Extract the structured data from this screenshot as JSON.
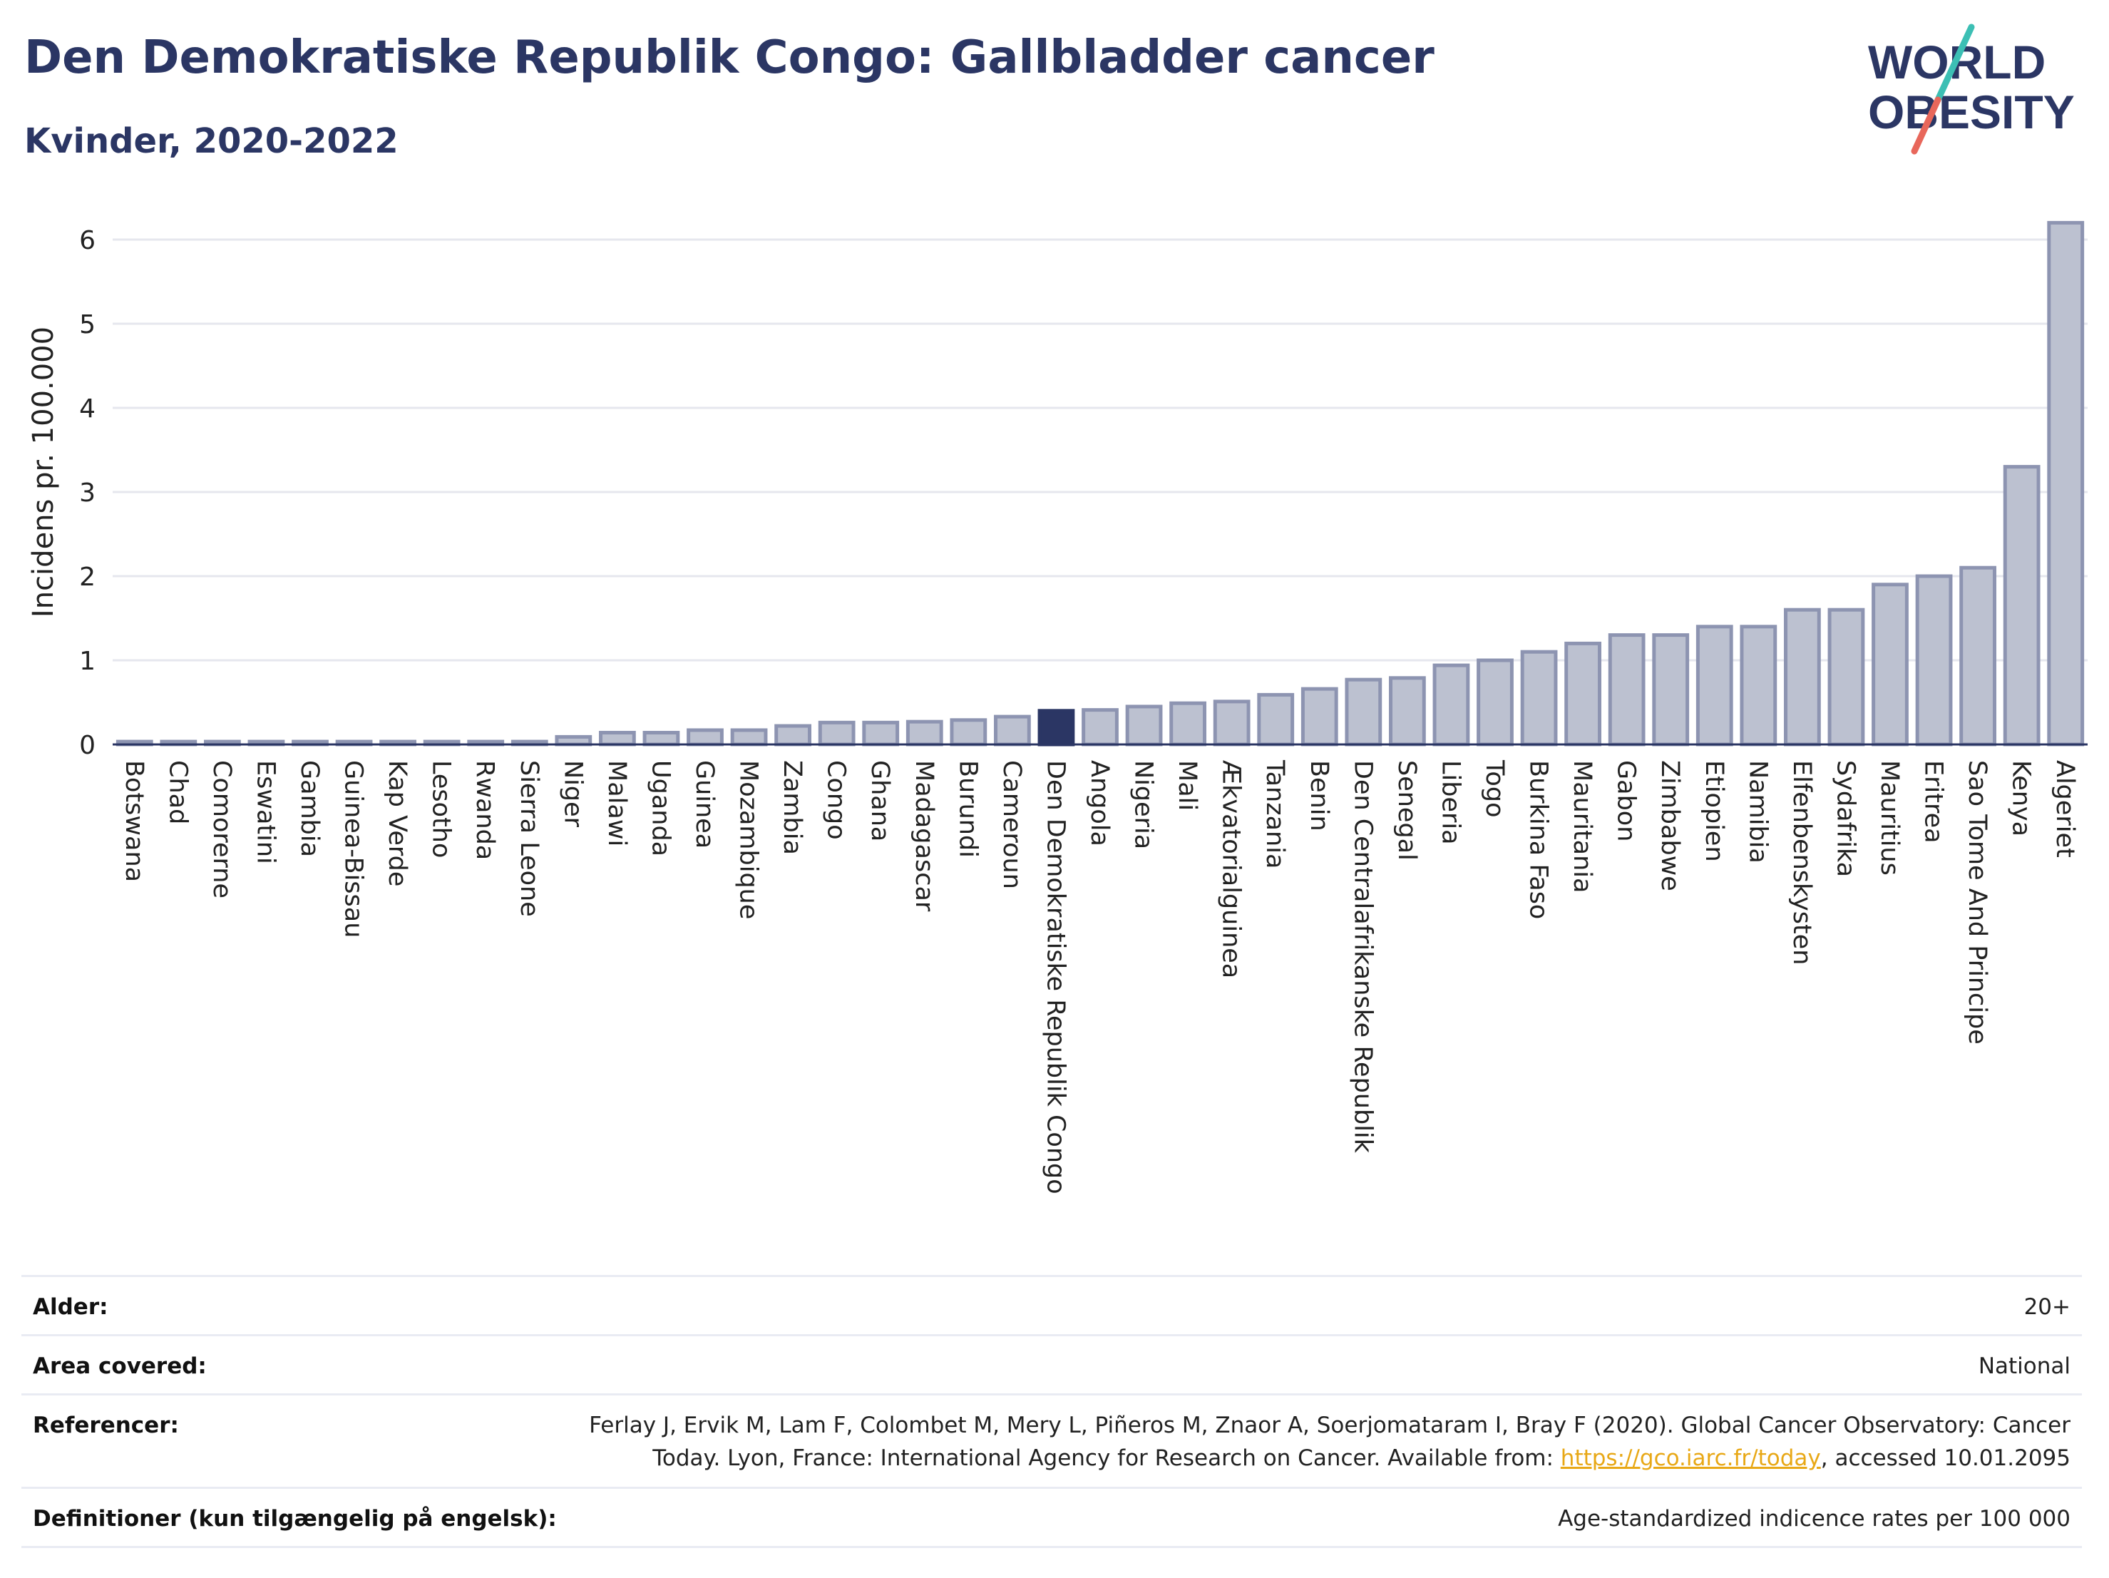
{
  "header": {
    "title": "Den Demokratiske Republik Congo: Gallbladder cancer",
    "subtitle": "Kvinder, 2020-2022"
  },
  "logo": {
    "line1": "WORLD",
    "line2": "OBESITY"
  },
  "colors": {
    "title": "#2b3664",
    "bar_fill": "#bcc1d0",
    "bar_stroke": "#8d94b1",
    "highlight": "#2b3664",
    "grid": "#e6e7ee",
    "link": "#e8a816",
    "logo_teal": "#3cbfb4",
    "logo_red": "#e8675b"
  },
  "chart_data": {
    "type": "bar",
    "ylabel": "Incidens pr. 100.000",
    "ylim": [
      0,
      6.3
    ],
    "yticks": [
      0,
      1,
      2,
      3,
      4,
      5,
      6
    ],
    "grid": true,
    "highlight_category": "Den Demokratiske Republik Congo",
    "categories": [
      "Botswana",
      "Chad",
      "Comorerne",
      "Eswatini",
      "Gambia",
      "Guinea-Bissau",
      "Kap Verde",
      "Lesotho",
      "Rwanda",
      "Sierra Leone",
      "Niger",
      "Malawi",
      "Uganda",
      "Guinea",
      "Mozambique",
      "Zambia",
      "Congo",
      "Ghana",
      "Madagascar",
      "Burundi",
      "Cameroun",
      "Den Demokratiske Republik Congo",
      "Angola",
      "Nigeria",
      "Mali",
      "Ækvatorialguinea",
      "Tanzania",
      "Benin",
      "Den Centralafrikanske Republik",
      "Senegal",
      "Liberia",
      "Togo",
      "Burkina Faso",
      "Mauritania",
      "Gabon",
      "Zimbabwe",
      "Etiopien",
      "Namibia",
      "Elfenbenskysten",
      "Sydafrika",
      "Mauritius",
      "Eritrea",
      "Sao Tome And Principe",
      "Kenya",
      "Algeriet"
    ],
    "values": [
      0.02,
      0.02,
      0.02,
      0.02,
      0.02,
      0.02,
      0.02,
      0.02,
      0.02,
      0.02,
      0.09,
      0.14,
      0.14,
      0.17,
      0.17,
      0.22,
      0.26,
      0.26,
      0.27,
      0.29,
      0.33,
      0.4,
      0.41,
      0.45,
      0.49,
      0.51,
      0.59,
      0.66,
      0.77,
      0.79,
      0.94,
      1.0,
      1.1,
      1.2,
      1.3,
      1.3,
      1.4,
      1.4,
      1.6,
      1.6,
      1.9,
      2.0,
      2.1,
      3.3,
      6.2
    ]
  },
  "info": [
    {
      "label": "Alder:",
      "value": "20+"
    },
    {
      "label": "Area covered:",
      "value": "National"
    },
    {
      "label": "Referencer:",
      "value_line1": "Ferlay J, Ervik M, Lam F, Colombet M, Mery L, Piñeros M, Znaor A, Soerjomataram I, Bray F (2020). Global Cancer Observatory: Cancer",
      "value_pre": "Today. Lyon, France: International Agency for Research on Cancer. Available from: ",
      "value_link": "https://gco.iarc.fr/today",
      "value_post": ", accessed 10.01.2095"
    },
    {
      "label": "Definitioner (kun tilgængelig på engelsk):",
      "value": "Age-standardized indicence rates per 100 000"
    }
  ]
}
